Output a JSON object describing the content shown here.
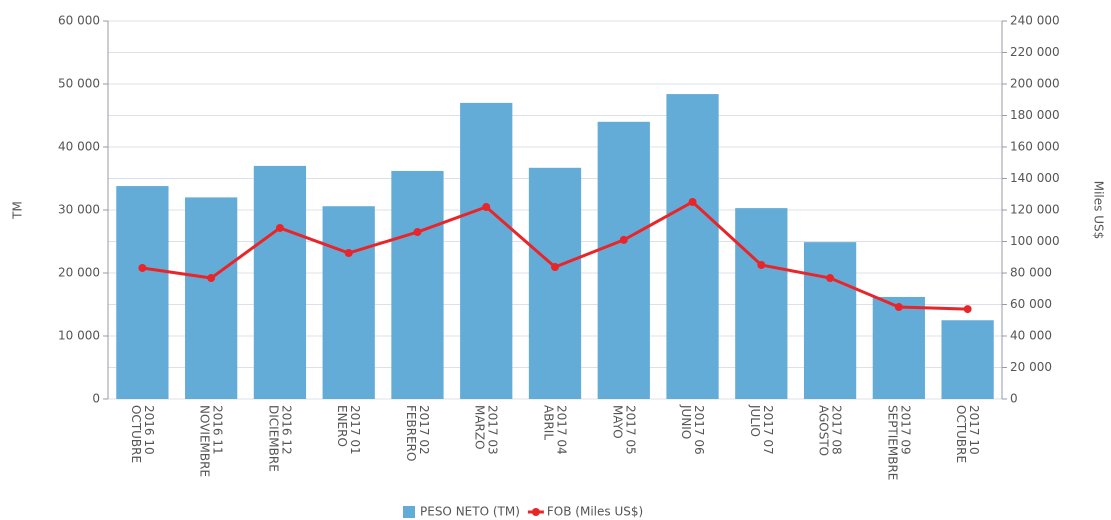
{
  "chart_data": {
    "type": "bar_line",
    "categories": [
      [
        "2016 10",
        "OCTUBRE"
      ],
      [
        "2016 11",
        "NOVIEMBRE"
      ],
      [
        "2016 12",
        "DICIEMBRE"
      ],
      [
        "2017 01",
        "ENERO"
      ],
      [
        "2017 02",
        "FEBRERO"
      ],
      [
        "2017 03",
        "MARZO"
      ],
      [
        "2017 04",
        "ABRIL"
      ],
      [
        "2017 05",
        "MAYO"
      ],
      [
        "2017 06",
        "JUNIO"
      ],
      [
        "2017 07",
        "JULIO"
      ],
      [
        "2017 08",
        "AGOSTO"
      ],
      [
        "2017 09",
        "SEPTIEMBRE"
      ],
      [
        "2017 10",
        "OCTUBRE"
      ]
    ],
    "series": [
      {
        "name": "PESO NETO (TM)",
        "type": "bar",
        "color": "#64acd8",
        "values": [
          33800,
          32000,
          37000,
          30600,
          36200,
          47000,
          36700,
          44000,
          48400,
          30300,
          24900,
          16200,
          12500
        ]
      },
      {
        "name": "FOB (Miles US$)",
        "type": "line",
        "axis": "y2",
        "color": "#e8262a",
        "values": [
          83200,
          76800,
          108600,
          92700,
          106000,
          121900,
          83800,
          101000,
          125100,
          85100,
          76800,
          58400,
          57100
        ]
      }
    ],
    "ylabel": "TM",
    "y2label": "Miles US$",
    "ylim": [
      0,
      60000
    ],
    "yticks": [
      {
        "value": 0,
        "label": "0"
      },
      {
        "value": 10000,
        "label": "10 000"
      },
      {
        "value": 20000,
        "label": "20 000"
      },
      {
        "value": 30000,
        "label": "30 000"
      },
      {
        "value": 40000,
        "label": "40 000"
      },
      {
        "value": 50000,
        "label": "50 000"
      },
      {
        "value": 60000,
        "label": "60 000"
      }
    ],
    "y2lim": [
      0,
      240000
    ],
    "y2ticks": [
      {
        "value": 0,
        "label": "0"
      },
      {
        "value": 20000,
        "label": "20 000"
      },
      {
        "value": 40000,
        "label": "40 000"
      },
      {
        "value": 60000,
        "label": "60 000"
      },
      {
        "value": 80000,
        "label": "80 000"
      },
      {
        "value": 100000,
        "label": "100 000"
      },
      {
        "value": 120000,
        "label": "120 000"
      },
      {
        "value": 140000,
        "label": "140 000"
      },
      {
        "value": 160000,
        "label": "160 000"
      },
      {
        "value": 180000,
        "label": "180 000"
      },
      {
        "value": 200000,
        "label": "200 000"
      },
      {
        "value": 220000,
        "label": "220 000"
      },
      {
        "value": 240000,
        "label": "240 000"
      }
    ],
    "grid": true,
    "legend": "bottom"
  }
}
